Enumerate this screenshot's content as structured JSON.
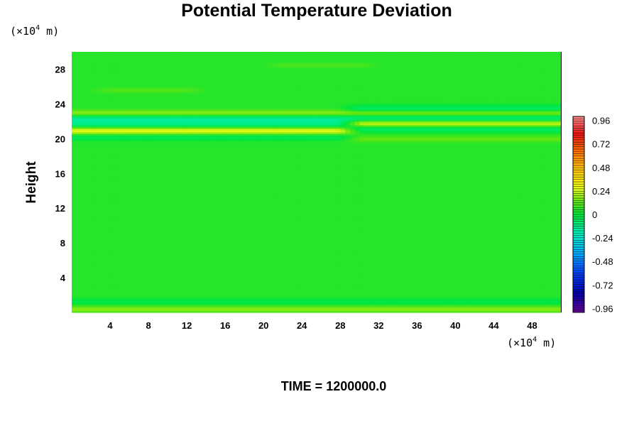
{
  "chart_data": {
    "type": "heatmap",
    "title": "Potential Temperature Deviation",
    "ylabel": "Height",
    "y_unit": {
      "prefix": "(×10",
      "exponent": "4",
      "suffix": " m)"
    },
    "x_unit": {
      "prefix": "(×10",
      "exponent": "4",
      "suffix": " m)"
    },
    "xlim": [
      0,
      51
    ],
    "ylim": [
      0,
      30
    ],
    "x_ticks": [
      4,
      8,
      12,
      16,
      20,
      24,
      28,
      32,
      36,
      40,
      44,
      48
    ],
    "y_ticks": [
      4,
      8,
      12,
      16,
      20,
      24,
      28
    ],
    "x_tick_labels": [
      "4",
      "8",
      "12",
      "16",
      "20",
      "24",
      "28",
      "32",
      "36",
      "40",
      "44",
      "48"
    ],
    "y_tick_labels": [
      "4",
      "8",
      "12",
      "16",
      "20",
      "24",
      "28"
    ],
    "colorbar": {
      "range": [
        -1.0,
        1.0
      ],
      "tick_values": [
        0.96,
        0.72,
        0.48,
        0.24,
        0,
        -0.24,
        -0.48,
        -0.72,
        -0.96
      ],
      "tick_labels": [
        "0.96",
        "0.72",
        "0.48",
        "0.24",
        "0",
        "-0.24",
        "-0.48",
        "-0.72",
        "-0.96"
      ],
      "levels": 84
    },
    "background_value": 0.05,
    "features": [
      {
        "y": 23.0,
        "width": 0.35,
        "x_from": 0,
        "x_to": 51,
        "amplitude": 0.13,
        "x_period": 51,
        "phase": 0.0
      },
      {
        "y": 22.3,
        "width": 0.45,
        "x_from": 0,
        "x_to": 51,
        "amplitude": -0.18,
        "x_period": 51,
        "phase": 0.0
      },
      {
        "y": 21.6,
        "width": 0.45,
        "x_from": 0,
        "x_to": 28,
        "amplitude": -0.16
      },
      {
        "y": 21.0,
        "width": 0.45,
        "x_from": 0,
        "x_to": 28,
        "amplitude": 0.24
      },
      {
        "y": 20.2,
        "width": 0.35,
        "x_from": 0,
        "x_to": 28,
        "amplitude": -0.1
      },
      {
        "y": 23.5,
        "width": 0.4,
        "x_from": 30,
        "x_to": 51,
        "amplitude": -0.12
      },
      {
        "y": 21.8,
        "width": 0.45,
        "x_from": 30,
        "x_to": 51,
        "amplitude": 0.24
      },
      {
        "y": 21.2,
        "width": 0.4,
        "x_from": 30,
        "x_to": 51,
        "amplitude": -0.14
      },
      {
        "y": 20.0,
        "width": 0.35,
        "x_from": 30,
        "x_to": 51,
        "amplitude": 0.08
      },
      {
        "y": 25.6,
        "width": 0.3,
        "x_from": 4,
        "x_to": 12,
        "amplitude": 0.06
      },
      {
        "y": 28.5,
        "width": 0.3,
        "x_from": 22,
        "x_to": 30,
        "amplitude": 0.05
      },
      {
        "y": 1.3,
        "width": 0.35,
        "x_from": 0,
        "x_to": 51,
        "amplitude": -0.07
      },
      {
        "y": 0.4,
        "width": 0.35,
        "x_from": 0,
        "x_to": 51,
        "amplitude": 0.12
      }
    ],
    "footer": "TIME = 1200000.0"
  }
}
